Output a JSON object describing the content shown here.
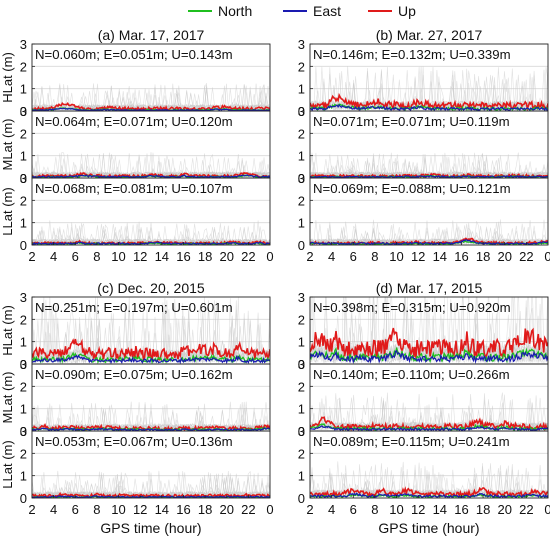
{
  "legend": {
    "entries": [
      {
        "label": "North",
        "color": "#1fbf1f"
      },
      {
        "label": "East",
        "color": "#1a1ab0"
      },
      {
        "label": "Up",
        "color": "#e01a1a"
      }
    ]
  },
  "colors": {
    "north": "#1fbf1f",
    "east": "#1a1ab0",
    "up": "#e01a1a",
    "background_tracks": "#c8c8c8",
    "grid": "#d9d9d9"
  },
  "chart_data": [
    {
      "type": "line",
      "title": "(a) Mar. 17, 2017",
      "xlabel": "",
      "xlim": [
        2,
        24
      ],
      "xticks": [
        2,
        4,
        6,
        8,
        10,
        12,
        14,
        16,
        18,
        20,
        22,
        0
      ],
      "ylim": [
        0,
        3
      ],
      "yticks": [
        0,
        1,
        2,
        3
      ],
      "subpanels": [
        {
          "ylabel": "HLat (m)",
          "stats": "N=0.060m; E=0.051m; U=0.143m",
          "series": [
            {
              "name": "North",
              "mean": 0.06
            },
            {
              "name": "East",
              "mean": 0.051
            },
            {
              "name": "Up",
              "mean": 0.143
            }
          ]
        },
        {
          "ylabel": "MLat (m)",
          "stats": "N=0.064m; E=0.071m; U=0.120m",
          "series": [
            {
              "name": "North",
              "mean": 0.064
            },
            {
              "name": "East",
              "mean": 0.071
            },
            {
              "name": "Up",
              "mean": 0.12
            }
          ]
        },
        {
          "ylabel": "LLat (m)",
          "stats": "N=0.068m; E=0.081m; U=0.107m",
          "series": [
            {
              "name": "North",
              "mean": 0.068
            },
            {
              "name": "East",
              "mean": 0.081
            },
            {
              "name": "Up",
              "mean": 0.107
            }
          ]
        }
      ]
    },
    {
      "type": "line",
      "title": "(b) Mar. 27, 2017",
      "xlabel": "",
      "xlim": [
        2,
        24
      ],
      "xticks": [
        2,
        4,
        6,
        8,
        10,
        12,
        14,
        16,
        18,
        20,
        22,
        0
      ],
      "ylim": [
        0,
        3
      ],
      "yticks": [
        0,
        1,
        2,
        3
      ],
      "subpanels": [
        {
          "ylabel": "",
          "stats": "N=0.146m; E=0.132m; U=0.339m",
          "series": [
            {
              "name": "North",
              "mean": 0.146
            },
            {
              "name": "East",
              "mean": 0.132
            },
            {
              "name": "Up",
              "mean": 0.339
            }
          ]
        },
        {
          "ylabel": "",
          "stats": "N=0.071m; E=0.071m; U=0.119m",
          "series": [
            {
              "name": "North",
              "mean": 0.071
            },
            {
              "name": "East",
              "mean": 0.071
            },
            {
              "name": "Up",
              "mean": 0.119
            }
          ]
        },
        {
          "ylabel": "",
          "stats": "N=0.069m; E=0.088m; U=0.121m",
          "series": [
            {
              "name": "North",
              "mean": 0.069
            },
            {
              "name": "East",
              "mean": 0.088
            },
            {
              "name": "Up",
              "mean": 0.121
            }
          ]
        }
      ]
    },
    {
      "type": "line",
      "title": "(c) Dec. 20, 2015",
      "xlabel": "GPS time (hour)",
      "xlim": [
        2,
        24
      ],
      "xticks": [
        2,
        4,
        6,
        8,
        10,
        12,
        14,
        16,
        18,
        20,
        22,
        0
      ],
      "ylim": [
        0,
        3
      ],
      "yticks": [
        0,
        1,
        2,
        3
      ],
      "subpanels": [
        {
          "ylabel": "HLat (m)",
          "stats": "N=0.251m; E=0.197m; U=0.601m",
          "series": [
            {
              "name": "North",
              "mean": 0.251
            },
            {
              "name": "East",
              "mean": 0.197
            },
            {
              "name": "Up",
              "mean": 0.601
            }
          ]
        },
        {
          "ylabel": "MLat (m)",
          "stats": "N=0.090m; E=0.075m; U=0.162m",
          "series": [
            {
              "name": "North",
              "mean": 0.09
            },
            {
              "name": "East",
              "mean": 0.075
            },
            {
              "name": "Up",
              "mean": 0.162
            }
          ]
        },
        {
          "ylabel": "LLat (m)",
          "stats": "N=0.053m; E=0.067m; U=0.136m",
          "series": [
            {
              "name": "North",
              "mean": 0.053
            },
            {
              "name": "East",
              "mean": 0.067
            },
            {
              "name": "Up",
              "mean": 0.136
            }
          ]
        }
      ]
    },
    {
      "type": "line",
      "title": "(d) Mar. 17, 2015",
      "xlabel": "GPS time (hour)",
      "xlim": [
        2,
        24
      ],
      "xticks": [
        2,
        4,
        6,
        8,
        10,
        12,
        14,
        16,
        18,
        20,
        22,
        0
      ],
      "ylim": [
        0,
        3
      ],
      "yticks": [
        0,
        1,
        2,
        3
      ],
      "subpanels": [
        {
          "ylabel": "",
          "stats": "N=0.398m; E=0.315m; U=0.920m",
          "series": [
            {
              "name": "North",
              "mean": 0.398
            },
            {
              "name": "East",
              "mean": 0.315
            },
            {
              "name": "Up",
              "mean": 0.92
            }
          ]
        },
        {
          "ylabel": "",
          "stats": "N=0.140m; E=0.110m; U=0.266m",
          "series": [
            {
              "name": "North",
              "mean": 0.14
            },
            {
              "name": "East",
              "mean": 0.11
            },
            {
              "name": "Up",
              "mean": 0.266
            }
          ]
        },
        {
          "ylabel": "",
          "stats": "N=0.089m; E=0.115m; U=0.241m",
          "series": [
            {
              "name": "North",
              "mean": 0.089
            },
            {
              "name": "East",
              "mean": 0.115
            },
            {
              "name": "Up",
              "mean": 0.241
            }
          ]
        }
      ]
    }
  ]
}
